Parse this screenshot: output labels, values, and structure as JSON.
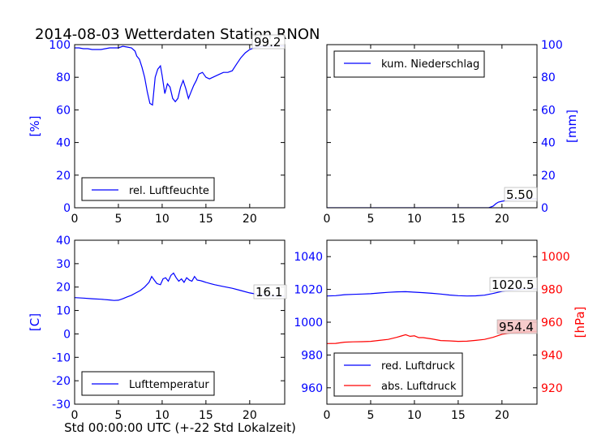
{
  "title": "2014-08-03 Wetterdaten Station RNON",
  "xlabel": "Std 00:00:00 UTC (+-22 Std Lokalzeit)",
  "colors": {
    "blue": "#0000ff",
    "red": "#ff0000",
    "black": "#000000"
  },
  "chart_data": [
    {
      "type": "line",
      "xlim": [
        0,
        24
      ],
      "ylim": [
        0,
        100
      ],
      "xticks": [
        0,
        5,
        10,
        15,
        20
      ],
      "yticks": [
        0,
        20,
        40,
        60,
        80,
        100
      ],
      "ylabel": "[%]",
      "legend": "lower-left",
      "last_value_label": "99.2",
      "series": [
        {
          "name": "rel. Luftfeuchte",
          "color": "#0000ff",
          "x": [
            0,
            0.5,
            1,
            1.5,
            2,
            2.5,
            3,
            3.5,
            4,
            4.5,
            5,
            5.5,
            6,
            6.5,
            6.9,
            7.1,
            7.4,
            7.7,
            8.0,
            8.3,
            8.6,
            8.9,
            9.2,
            9.5,
            9.8,
            10.0,
            10.3,
            10.6,
            10.9,
            11.2,
            11.5,
            11.8,
            12.1,
            12.4,
            12.7,
            13.0,
            13.3,
            13.6,
            13.9,
            14.2,
            14.6,
            15.0,
            15.4,
            15.8,
            16.2,
            16.6,
            17.0,
            17.5,
            18.0,
            18.5,
            19.0,
            19.5,
            20.0,
            20.5,
            21.0,
            21.5,
            22.0,
            22.5,
            23.0,
            23.5,
            24.0
          ],
          "y": [
            98,
            98,
            97.5,
            97.5,
            97,
            97,
            97,
            97.5,
            98,
            98,
            98,
            99,
            98.5,
            98,
            96,
            93,
            91,
            86,
            80,
            71,
            64,
            63,
            80,
            85,
            87,
            81,
            70,
            76,
            74,
            67,
            65,
            67,
            74,
            78,
            73,
            67,
            71,
            75,
            78,
            82,
            83,
            80,
            79,
            80,
            81,
            82,
            83,
            83,
            84,
            88,
            92,
            95,
            97,
            98,
            98.5,
            99,
            99,
            99,
            99.2,
            99.2,
            99.2
          ]
        }
      ]
    },
    {
      "type": "area",
      "xlim": [
        0,
        24
      ],
      "ylim": [
        0,
        100
      ],
      "xticks": [
        0,
        5,
        10,
        15,
        20
      ],
      "yticks": [
        0,
        20,
        40,
        60,
        80,
        100
      ],
      "ylabel": "[mm]",
      "legend": "top-left",
      "last_value_label": "5.50",
      "series": [
        {
          "name": "kum. Niederschlag",
          "color": "#0000ff",
          "x": [
            0,
            18.5,
            19.0,
            19.3,
            19.6,
            20.0,
            20.5,
            21.0,
            22.0,
            23.0,
            24.0
          ],
          "y": [
            0,
            0,
            1.0,
            2.5,
            3.5,
            4.0,
            4.5,
            5.0,
            5.2,
            5.4,
            5.5
          ]
        }
      ]
    },
    {
      "type": "line",
      "xlim": [
        0,
        24
      ],
      "ylim": [
        -30,
        40
      ],
      "xticks": [
        0,
        5,
        10,
        15,
        20
      ],
      "yticks": [
        -30,
        -20,
        -10,
        0,
        10,
        20,
        30,
        40
      ],
      "ylabel": "[C]",
      "legend": "lower-left",
      "last_value_label": "16.1",
      "series": [
        {
          "name": "Lufttemperatur",
          "color": "#0000ff",
          "x": [
            0,
            1,
            2,
            3,
            4,
            4.5,
            5,
            5.5,
            6,
            6.5,
            7,
            7.5,
            8,
            8.5,
            8.8,
            9.1,
            9.4,
            9.8,
            10.1,
            10.4,
            10.7,
            11.0,
            11.3,
            11.6,
            11.9,
            12.2,
            12.5,
            12.8,
            13.1,
            13.4,
            13.7,
            14.0,
            14.3,
            14.6,
            15.0,
            15.5,
            16,
            17,
            18,
            19,
            20,
            21,
            22,
            23,
            24
          ],
          "y": [
            15.5,
            15.3,
            15.0,
            14.8,
            14.5,
            14.3,
            14.4,
            15.0,
            15.8,
            16.5,
            17.5,
            18.5,
            20,
            22,
            24.5,
            23,
            21.5,
            21,
            23.5,
            24,
            22.5,
            25,
            26,
            24,
            22.5,
            23.5,
            22,
            24,
            23,
            22.5,
            24.5,
            23,
            22.8,
            22.5,
            22,
            21.5,
            21,
            20.2,
            19.5,
            18.5,
            17.5,
            16.8,
            16.3,
            16.2,
            16.1
          ]
        }
      ]
    },
    {
      "type": "line",
      "xlim": [
        0,
        24
      ],
      "ylim": [
        950,
        1050
      ],
      "ylim_right": [
        910,
        1010
      ],
      "xticks": [
        0,
        5,
        10,
        15,
        20
      ],
      "yticks": [
        960,
        980,
        1000,
        1020,
        1040
      ],
      "yticks_right": [
        920,
        940,
        960,
        980,
        1000
      ],
      "ylabel_right": "[hPa]",
      "legend": "lower-left",
      "series": [
        {
          "name": "red. Luftdruck",
          "color": "#0000ff",
          "axis": "left",
          "last_value_label": "1020.5",
          "x": [
            0,
            1,
            2,
            3,
            4,
            5,
            6,
            7,
            8,
            9,
            10,
            11,
            12,
            13,
            14,
            15,
            16,
            17,
            18,
            19,
            20,
            21,
            22,
            23,
            24
          ],
          "y": [
            1016.0,
            1016.2,
            1016.8,
            1017.0,
            1017.2,
            1017.4,
            1017.8,
            1018.2,
            1018.5,
            1018.6,
            1018.3,
            1018.0,
            1017.6,
            1017.2,
            1016.6,
            1016.2,
            1016.0,
            1016.1,
            1016.5,
            1017.5,
            1018.8,
            1019.6,
            1020.0,
            1020.3,
            1020.5
          ]
        },
        {
          "name": "abs. Luftdruck",
          "color": "#ff0000",
          "axis": "right",
          "last_value_label": "954.4",
          "x": [
            0,
            1,
            2,
            3,
            4,
            5,
            6,
            7,
            8,
            8.5,
            9,
            9.5,
            10,
            10.5,
            11,
            12,
            13,
            14,
            15,
            16,
            17,
            18,
            19,
            20,
            21,
            22,
            23,
            24
          ],
          "y": [
            947.0,
            947.1,
            947.8,
            948.0,
            948.1,
            948.3,
            948.9,
            949.5,
            950.8,
            951.6,
            952.4,
            951.4,
            951.7,
            950.6,
            950.6,
            949.8,
            948.8,
            948.6,
            948.3,
            948.4,
            948.9,
            949.5,
            950.8,
            952.6,
            953.4,
            953.8,
            954.2,
            954.4
          ]
        }
      ]
    }
  ]
}
